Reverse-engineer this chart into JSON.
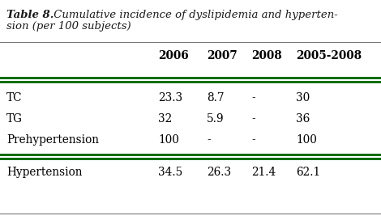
{
  "title_part1": "Table 8.",
  "title_part2": " Cumulative incidence of dyslipidemia and hypertension (per 100 subjects)",
  "title_line1_part2": " Cumulative incidence of dyslipidemia and hyperten-",
  "title_line2": "sion (per 100 subjects)",
  "columns": [
    "",
    "2006",
    "2007",
    "2008",
    "2005-2008"
  ],
  "rows": [
    [
      "TC",
      "23.3",
      "8.7",
      "-",
      "30"
    ],
    [
      "TG",
      "32",
      "5.9",
      "-",
      "36"
    ],
    [
      "Prehypertension",
      "100",
      "-",
      "-",
      "100"
    ],
    [
      "Hypertension",
      "34.5",
      "26.3",
      "21.4",
      "62.1"
    ]
  ],
  "green_color": "#006400",
  "thin_line_color": "#777777",
  "header_color": "#000000",
  "body_color": "#000000",
  "bg_color": "#ffffff",
  "title_fontsize": 9.5,
  "header_fontsize": 9.8,
  "data_fontsize": 9.8
}
